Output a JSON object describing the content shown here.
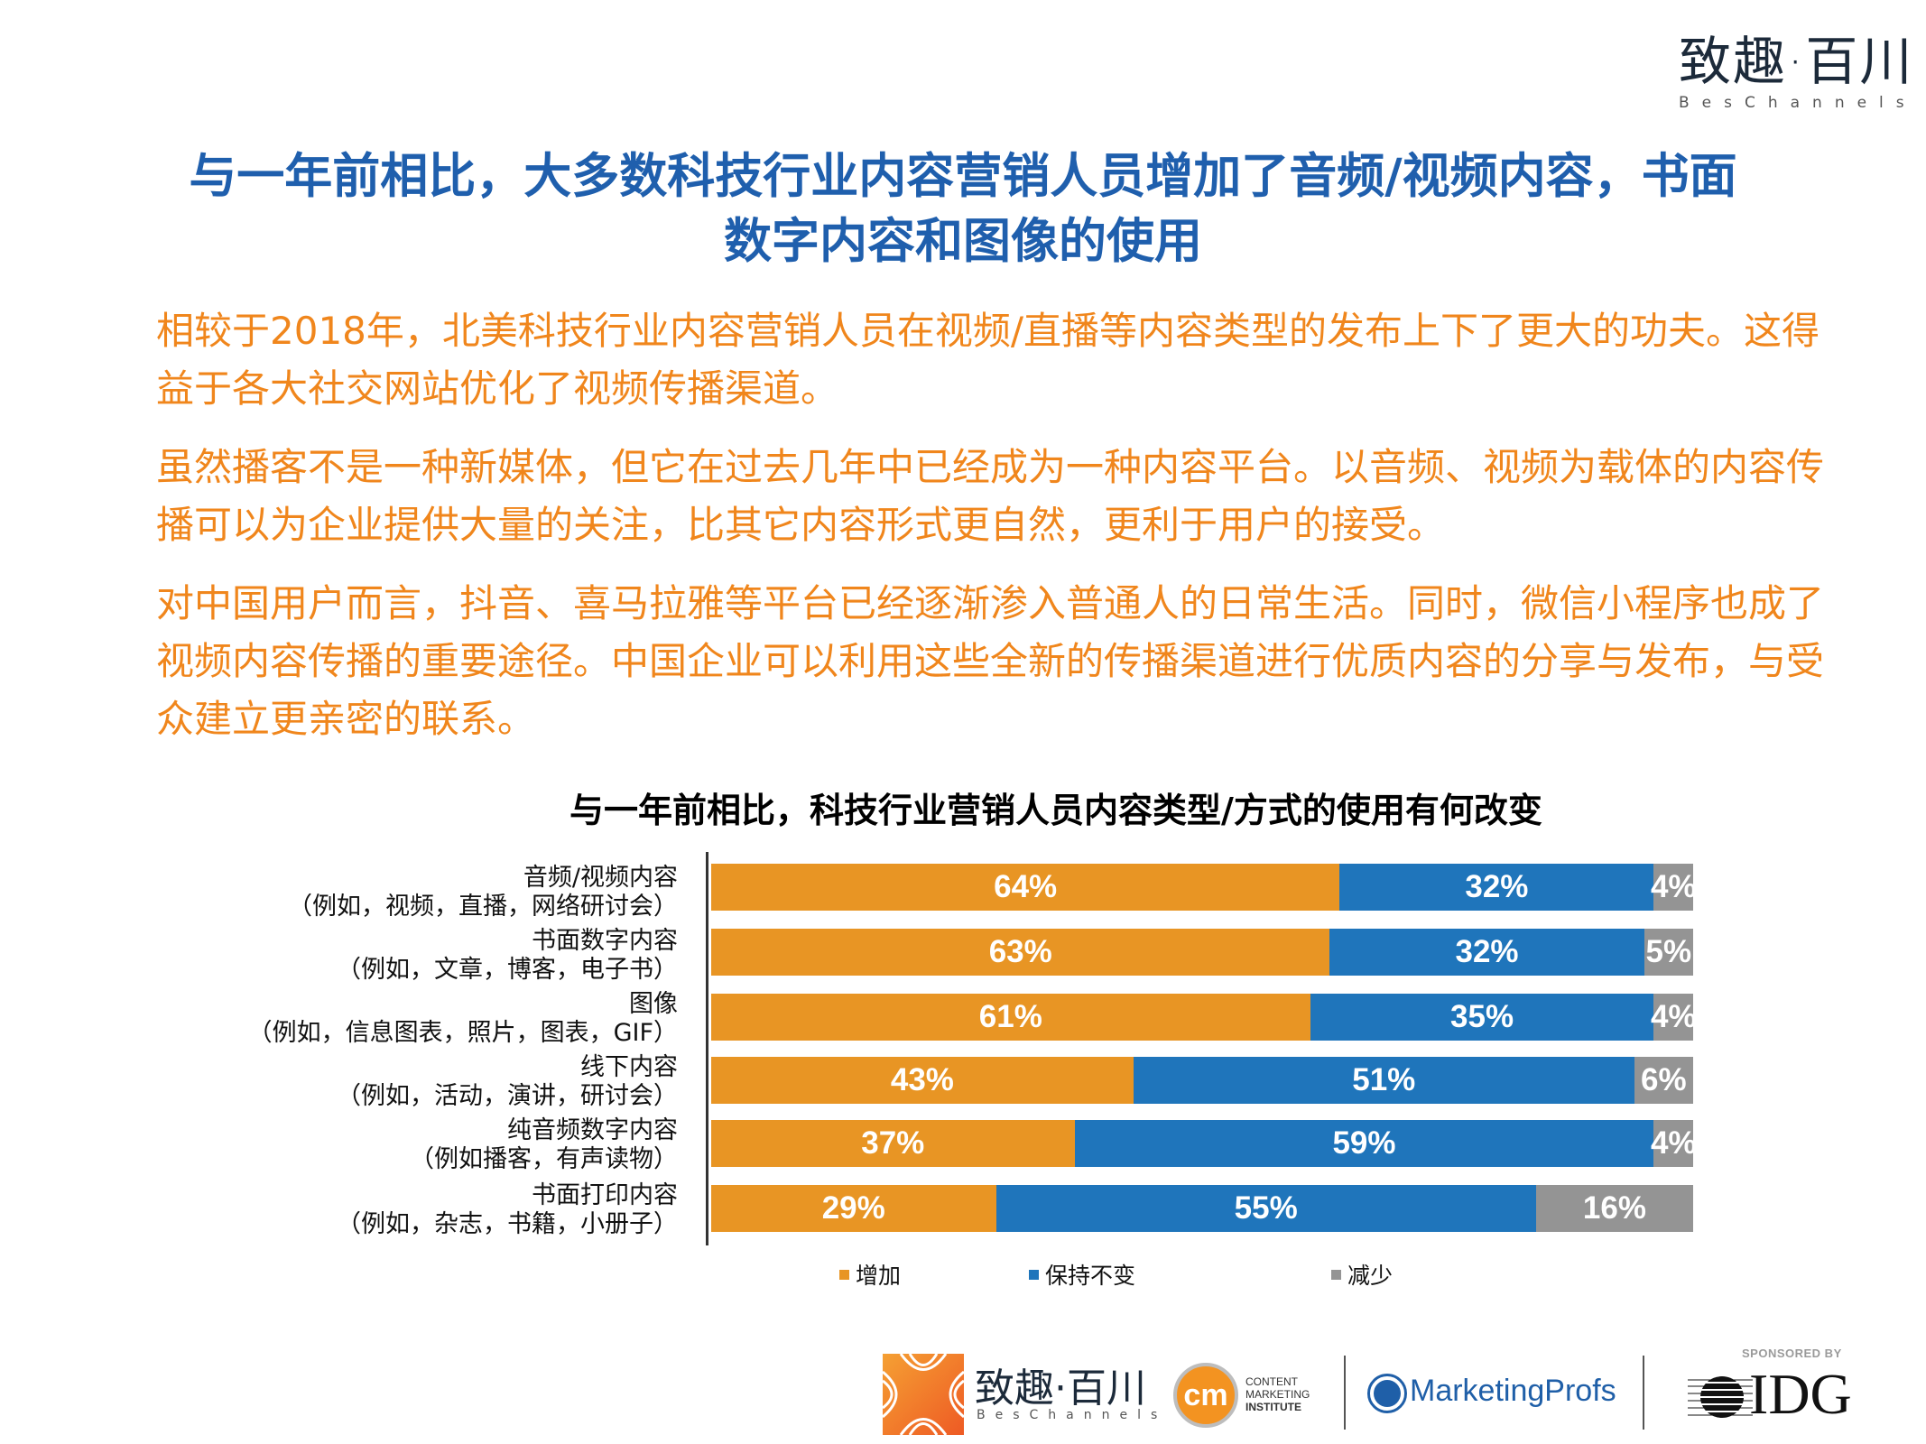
{
  "brand": {
    "logo_cn": "致趣·百川",
    "logo_en": "BesChannels"
  },
  "headline": {
    "line1": "与一年前相比，大多数科技行业内容营销人员增加了音频/视频内容，书面",
    "line2": "数字内容和图像的使用"
  },
  "paragraphs": [
    "相较于2018年，北美科技行业内容营销人员在视频/直播等内容类型的发布上下了更大的功夫。这得益于各大社交网站优化了视频传播渠道。",
    "虽然播客不是一种新媒体，但它在过去几年中已经成为一种内容平台。以音频、视频为载体的内容传播可以为企业提供大量的关注，比其它内容形式更自然，更利于用户的接受。",
    "对中国用户而言，抖音、喜马拉雅等平台已经逐渐渗入普通人的日常生活。同时，微信小程序也成了视频内容传播的重要途径。中国企业可以利用这些全新的传播渠道进行优质内容的分享与发布，与受众建立更亲密的联系。"
  ],
  "chart_data": {
    "type": "bar",
    "orientation": "horizontal",
    "stacked": true,
    "title": "与一年前相比，科技行业营销人员内容类型/方式的使用有何改变",
    "xlabel": "",
    "ylabel": "",
    "xlim": [
      0,
      100
    ],
    "grid": false,
    "legend_position": "bottom",
    "categories": [
      {
        "name": "音频/视频内容",
        "example": "（例如，视频，直播，网络研讨会）"
      },
      {
        "name": "书面数字内容",
        "example": "（例如，文章，博客，电子书）"
      },
      {
        "name": "图像",
        "example": "（例如，信息图表，照片，图表，GIF）"
      },
      {
        "name": "线下内容",
        "example": "（例如，活动，演讲，研讨会）"
      },
      {
        "name": "纯音频数字内容",
        "example": "（例如播客，有声读物）"
      },
      {
        "name": "书面打印内容",
        "example": "（例如，杂志，书籍，小册子）"
      }
    ],
    "series": [
      {
        "name": "增加",
        "color": "#e89524",
        "values": [
          64,
          63,
          61,
          43,
          37,
          29
        ],
        "labels": [
          "64%",
          "63%",
          "61%",
          "43%",
          "37%",
          "29%"
        ]
      },
      {
        "name": "保持不变",
        "color": "#1f75bb",
        "values": [
          32,
          32,
          35,
          51,
          59,
          55
        ],
        "labels": [
          "32%",
          "32%",
          "35%",
          "51%",
          "59%",
          "55%"
        ]
      },
      {
        "name": "减少",
        "color": "#949494",
        "values": [
          4,
          5,
          4,
          6,
          4,
          16
        ],
        "labels": [
          "4%",
          "5%",
          "4%",
          "6%",
          "4%",
          "16%"
        ]
      }
    ]
  },
  "footer": {
    "bes_cn": "致趣·百川",
    "bes_en": "BesChannels",
    "cmi_badge": "cm",
    "cmi_line1": "CONTENT",
    "cmi_line2": "MARKETING",
    "cmi_line3": "INSTITUTE",
    "mp_name": "MarketingProfs",
    "sponsored_by": "SPONSORED BY",
    "idg": "IDG"
  }
}
